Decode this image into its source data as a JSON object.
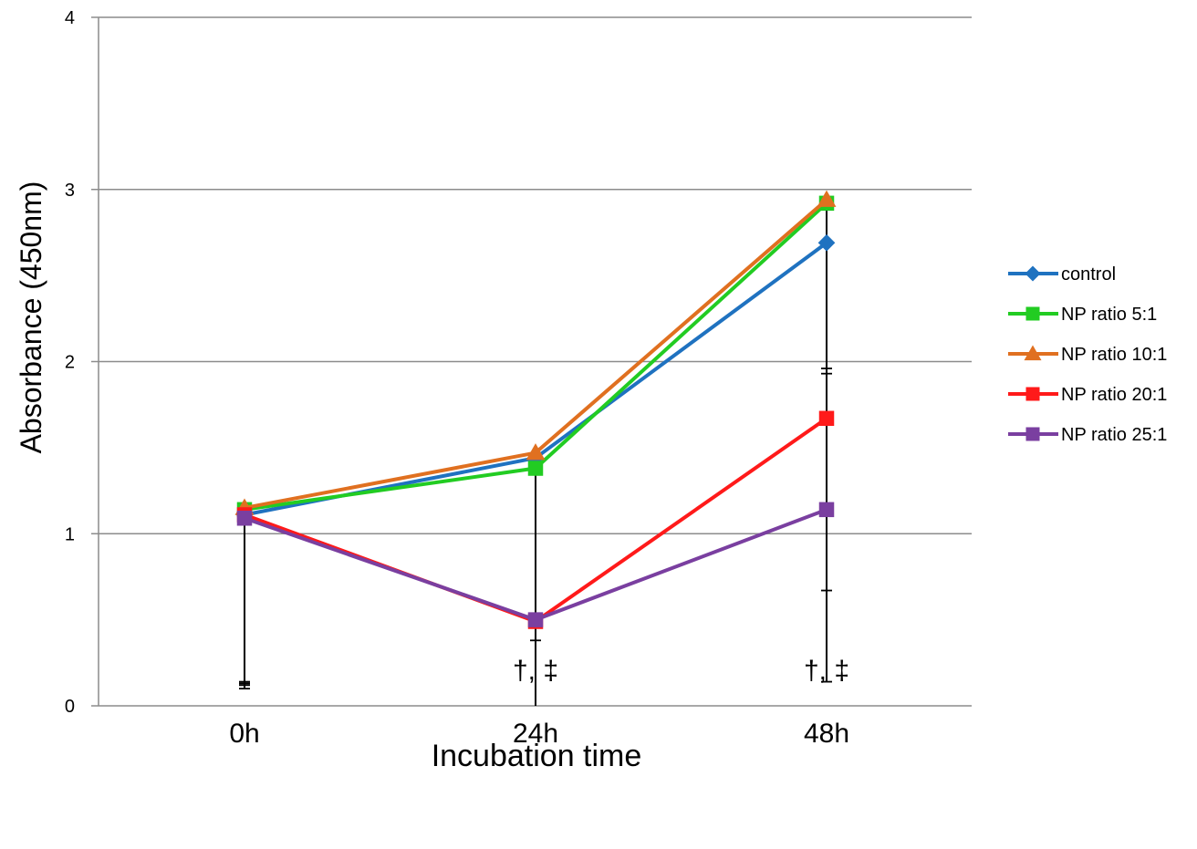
{
  "chart_data": {
    "type": "line",
    "xlabel": "Incubation time",
    "ylabel": "Absorbance (450nm)",
    "categories": [
      "0h",
      "24h",
      "48h"
    ],
    "ylim": [
      0,
      4
    ],
    "yticks": [
      "0",
      "1",
      "2",
      "3",
      "4"
    ],
    "grid": true,
    "legend_position": "right",
    "series": [
      {
        "name": "control",
        "marker": "diamond",
        "color": "#1F72C0",
        "values": [
          1.11,
          1.44,
          2.69
        ]
      },
      {
        "name": "NP ratio 5:1",
        "marker": "square",
        "color": "#22CC22",
        "values": [
          1.14,
          1.38,
          2.92
        ]
      },
      {
        "name": "NP ratio 10:1",
        "marker": "triangle",
        "color": "#E07020",
        "values": [
          1.15,
          1.47,
          2.94
        ]
      },
      {
        "name": "NP ratio 20:1",
        "marker": "square",
        "color": "#FF1A1A",
        "values": [
          1.11,
          0.49,
          1.67
        ]
      },
      {
        "name": "NP ratio 25:1",
        "marker": "square",
        "color": "#7A3FA0",
        "values": [
          1.09,
          0.5,
          1.14
        ]
      }
    ],
    "error_bars": [
      {
        "category": "0h",
        "top": 1.15,
        "bottom_caps": [
          0.1,
          0.12,
          0.13,
          0.14
        ]
      },
      {
        "category": "24h",
        "top": 1.47,
        "bottom_caps": [
          0.0,
          0.38
        ]
      },
      {
        "category": "48h",
        "top": 2.94,
        "bottom_caps": [
          0.14,
          0.67,
          1.93,
          1.96
        ]
      }
    ],
    "annotations": [
      {
        "category": "24h",
        "text": "†, ‡"
      },
      {
        "category": "48h",
        "text": "†, ‡"
      }
    ]
  }
}
